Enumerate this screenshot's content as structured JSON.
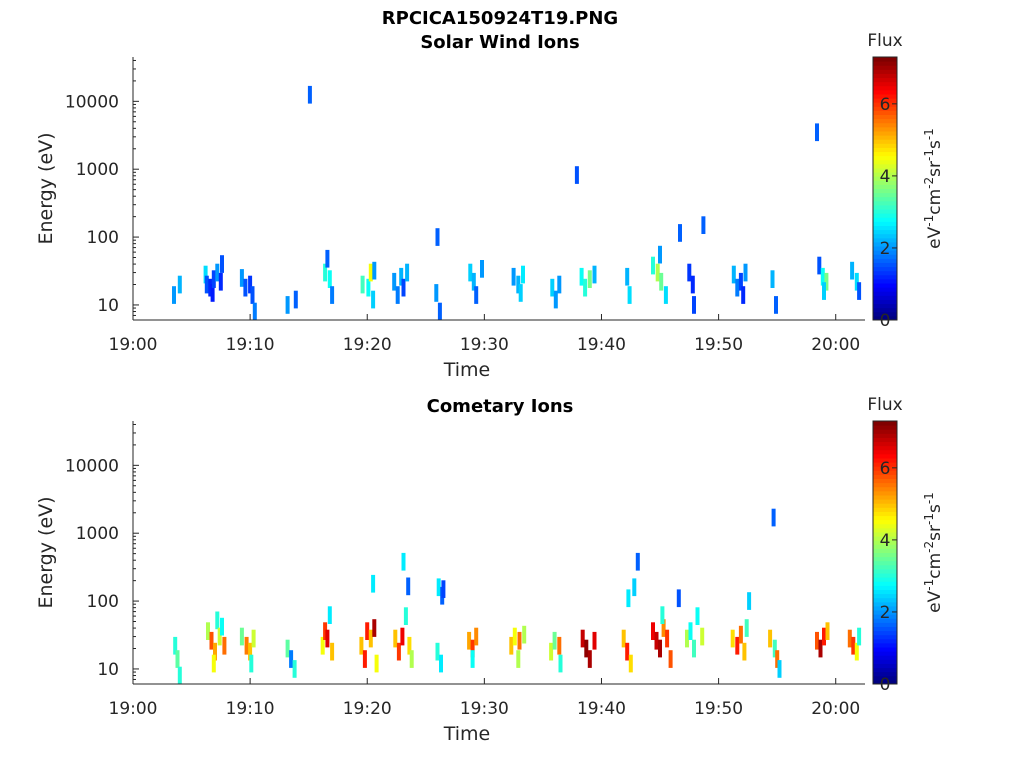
{
  "figure_title": "RPCICA150924T19.PNG",
  "colorbar_scale": [
    "#000080",
    "#0000ff",
    "#0080ff",
    "#00ffff",
    "#80ff80",
    "#ffff00",
    "#ff8000",
    "#ff0000",
    "#800000"
  ],
  "chart_data": [
    {
      "type": "heatmap",
      "title": "Solar Wind Ions",
      "xlabel": "Time",
      "ylabel": "Energy (eV)",
      "yscale": "log",
      "ylim": [
        6,
        45000
      ],
      "xlim_minutes": [
        0,
        62.5
      ],
      "xticks": [
        "19:00",
        "19:10",
        "19:20",
        "19:30",
        "19:40",
        "19:50",
        "20:00"
      ],
      "yticks": [
        "10",
        "100",
        "1000",
        "10000"
      ],
      "colorbar": {
        "label": "Flux",
        "unit": "eV-1cm-2sr-1s-1",
        "ticks": [
          "0",
          "2",
          "4",
          "6"
        ],
        "range": [
          0,
          7.3
        ]
      },
      "series": [
        {
          "points": [
            [
              3.5,
              14,
              2.0
            ],
            [
              4.0,
              20,
              2.2
            ],
            [
              6.2,
              28,
              2.5
            ],
            [
              6.3,
              20,
              1.5
            ],
            [
              6.6,
              18,
              1.2
            ],
            [
              6.8,
              15,
              1.1
            ],
            [
              6.9,
              24,
              1.4
            ],
            [
              7.2,
              30,
              2.0
            ],
            [
              7.5,
              22,
              1.2
            ],
            [
              7.6,
              40,
              1.5
            ],
            [
              9.3,
              25,
              2.0
            ],
            [
              9.6,
              18,
              1.5
            ],
            [
              10.0,
              20,
              1.3
            ],
            [
              10.2,
              14,
              1.5
            ],
            [
              10.4,
              8,
              1.8
            ],
            [
              13.2,
              10,
              2.0
            ],
            [
              13.9,
              12,
              1.6
            ],
            [
              15.1,
              12500,
              1.6
            ],
            [
              16.4,
              30,
              3.0
            ],
            [
              16.6,
              48,
              1.6
            ],
            [
              16.8,
              24,
              2.8
            ],
            [
              17.0,
              14,
              1.8
            ],
            [
              19.6,
              20,
              3.2
            ],
            [
              20.1,
              18,
              2.8
            ],
            [
              20.3,
              30,
              4.5
            ],
            [
              20.6,
              32,
              2.0
            ],
            [
              20.5,
              12,
              2.4
            ],
            [
              22.3,
              22,
              2.0
            ],
            [
              22.6,
              14,
              1.8
            ],
            [
              22.9,
              26,
              2.2
            ],
            [
              23.1,
              18,
              1.4
            ],
            [
              23.4,
              30,
              2.2
            ],
            [
              26.0,
              100,
              1.6
            ],
            [
              25.9,
              15,
              2.0
            ],
            [
              26.2,
              8,
              1.6
            ],
            [
              28.8,
              30,
              2.4
            ],
            [
              29.1,
              22,
              2.2
            ],
            [
              29.3,
              14,
              1.6
            ],
            [
              29.8,
              34,
              2.0
            ],
            [
              32.5,
              26,
              2.0
            ],
            [
              32.9,
              20,
              2.2
            ],
            [
              33.3,
              28,
              2.6
            ],
            [
              33.1,
              15,
              2.4
            ],
            [
              35.8,
              18,
              2.4
            ],
            [
              36.1,
              12,
              2.0
            ],
            [
              36.4,
              20,
              2.0
            ],
            [
              37.9,
              820,
              1.5
            ],
            [
              38.3,
              26,
              2.8
            ],
            [
              38.6,
              18,
              3.0
            ],
            [
              39.0,
              24,
              3.6
            ],
            [
              39.4,
              28,
              2.2
            ],
            [
              42.2,
              26,
              2.2
            ],
            [
              42.4,
              14,
              2.5
            ],
            [
              44.4,
              38,
              3.0
            ],
            [
              44.8,
              30,
              4.0
            ],
            [
              45.1,
              22,
              3.5
            ],
            [
              45.5,
              14,
              2.5
            ],
            [
              45.0,
              55,
              2.0
            ],
            [
              46.7,
              115,
              1.6
            ],
            [
              47.5,
              30,
              1.3
            ],
            [
              47.8,
              20,
              1.2
            ],
            [
              47.9,
              10,
              1.4
            ],
            [
              48.7,
              150,
              1.6
            ],
            [
              51.3,
              28,
              2.2
            ],
            [
              51.6,
              18,
              1.8
            ],
            [
              51.9,
              22,
              1.4
            ],
            [
              52.3,
              30,
              2.0
            ],
            [
              52.1,
              14,
              1.2
            ],
            [
              54.6,
              24,
              2.2
            ],
            [
              54.9,
              10,
              1.6
            ],
            [
              58.6,
              38,
              1.5
            ],
            [
              58.9,
              26,
              2.8
            ],
            [
              59.2,
              22,
              3.6
            ],
            [
              59.0,
              16,
              2.4
            ],
            [
              58.4,
              3500,
              1.6
            ],
            [
              61.4,
              32,
              2.2
            ],
            [
              61.8,
              22,
              2.5
            ],
            [
              62.0,
              16,
              1.5
            ]
          ]
        }
      ]
    },
    {
      "type": "heatmap",
      "title": "Cometary Ions",
      "xlabel": "Time",
      "ylabel": "Energy (eV)",
      "yscale": "log",
      "ylim": [
        6,
        45000
      ],
      "xlim_minutes": [
        0,
        62.5
      ],
      "xticks": [
        "19:00",
        "19:10",
        "19:20",
        "19:30",
        "19:40",
        "19:50",
        "20:00"
      ],
      "yticks": [
        "10",
        "100",
        "1000",
        "10000"
      ],
      "colorbar": {
        "label": "Flux",
        "unit": "eV-1cm-2sr-1s-1",
        "ticks": [
          "0",
          "2",
          "4",
          "6"
        ],
        "range": [
          0,
          7.3
        ]
      },
      "series": [
        {
          "points": [
            [
              3.6,
              22,
              3.0
            ],
            [
              3.8,
              14,
              3.4
            ],
            [
              4.0,
              8,
              3.0
            ],
            [
              6.4,
              36,
              4.0
            ],
            [
              6.7,
              26,
              5.8
            ],
            [
              7.0,
              18,
              5.2
            ],
            [
              7.2,
              52,
              3.0
            ],
            [
              7.4,
              30,
              4.2
            ],
            [
              7.6,
              42,
              2.8
            ],
            [
              7.8,
              22,
              5.6
            ],
            [
              6.9,
              12,
              4.5
            ],
            [
              9.3,
              30,
              3.5
            ],
            [
              9.7,
              22,
              5.5
            ],
            [
              10.0,
              18,
              5.0
            ],
            [
              10.3,
              28,
              4.2
            ],
            [
              10.1,
              12,
              3.0
            ],
            [
              13.2,
              20,
              3.4
            ],
            [
              13.5,
              14,
              1.8
            ],
            [
              13.8,
              10,
              3.0
            ],
            [
              16.2,
              22,
              4.5
            ],
            [
              16.4,
              36,
              6.0
            ],
            [
              16.6,
              28,
              6.6
            ],
            [
              16.8,
              62,
              2.6
            ],
            [
              17.0,
              18,
              5.0
            ],
            [
              19.5,
              22,
              5.0
            ],
            [
              19.8,
              14,
              6.2
            ],
            [
              20.0,
              36,
              6.2
            ],
            [
              20.3,
              28,
              5.0
            ],
            [
              20.6,
              40,
              7.0
            ],
            [
              20.5,
              180,
              2.6
            ],
            [
              20.8,
              12,
              4.5
            ],
            [
              22.4,
              28,
              5.0
            ],
            [
              22.7,
              18,
              6.0
            ],
            [
              23.0,
              30,
              6.5
            ],
            [
              23.3,
              60,
              3.0
            ],
            [
              23.6,
              22,
              4.8
            ],
            [
              23.8,
              14,
              4.0
            ],
            [
              23.1,
              380,
              2.6
            ],
            [
              23.5,
              165,
              1.6
            ],
            [
              26.0,
              18,
              3.0
            ],
            [
              26.3,
              12,
              2.6
            ],
            [
              26.1,
              160,
              2.6
            ],
            [
              26.4,
              120,
              1.6
            ],
            [
              26.5,
              150,
              1.4
            ],
            [
              28.7,
              26,
              5.2
            ],
            [
              29.0,
              20,
              6.0
            ],
            [
              29.3,
              30,
              5.4
            ],
            [
              29.0,
              14,
              2.8
            ],
            [
              32.3,
              22,
              5.0
            ],
            [
              32.6,
              30,
              4.5
            ],
            [
              33.0,
              26,
              5.6
            ],
            [
              33.4,
              32,
              4.0
            ],
            [
              32.9,
              14,
              4.0
            ],
            [
              35.7,
              18,
              4.2
            ],
            [
              36.0,
              26,
              3.5
            ],
            [
              36.4,
              22,
              5.6
            ],
            [
              36.5,
              12,
              3.0
            ],
            [
              38.4,
              28,
              6.8
            ],
            [
              38.7,
              20,
              7.2
            ],
            [
              39.0,
              14,
              7.0
            ],
            [
              39.4,
              26,
              6.6
            ],
            [
              41.9,
              28,
              5.0
            ],
            [
              42.2,
              18,
              6.2
            ],
            [
              42.5,
              12,
              4.8
            ],
            [
              42.3,
              110,
              2.6
            ],
            [
              42.8,
              160,
              2.4
            ],
            [
              43.1,
              380,
              1.6
            ],
            [
              44.4,
              36,
              6.5
            ],
            [
              44.7,
              26,
              6.8
            ],
            [
              45.0,
              20,
              7.0
            ],
            [
              45.3,
              40,
              5.4
            ],
            [
              45.6,
              28,
              6.0
            ],
            [
              45.9,
              14,
              5.8
            ],
            [
              45.2,
              62,
              3.0
            ],
            [
              46.6,
              110,
              1.5
            ],
            [
              47.3,
              28,
              4.0
            ],
            [
              47.6,
              36,
              2.8
            ],
            [
              47.9,
              20,
              3.2
            ],
            [
              48.2,
              60,
              2.8
            ],
            [
              48.6,
              30,
              4.2
            ],
            [
              51.2,
              28,
              4.8
            ],
            [
              51.6,
              22,
              6.2
            ],
            [
              51.9,
              32,
              5.6
            ],
            [
              52.2,
              18,
              5.0
            ],
            [
              52.4,
              40,
              3.2
            ],
            [
              52.6,
              100,
              2.4
            ],
            [
              54.4,
              28,
              5.0
            ],
            [
              54.8,
              20,
              3.2
            ],
            [
              55.0,
              14,
              5.6
            ],
            [
              55.2,
              10,
              2.4
            ],
            [
              54.7,
              1700,
              1.6
            ],
            [
              58.4,
              26,
              5.8
            ],
            [
              58.7,
              20,
              7.0
            ],
            [
              59.0,
              30,
              6.2
            ],
            [
              59.3,
              36,
              5.0
            ],
            [
              61.2,
              28,
              5.6
            ],
            [
              61.5,
              22,
              6.0
            ],
            [
              61.8,
              18,
              4.5
            ],
            [
              62.0,
              30,
              3.0
            ]
          ]
        }
      ]
    }
  ]
}
